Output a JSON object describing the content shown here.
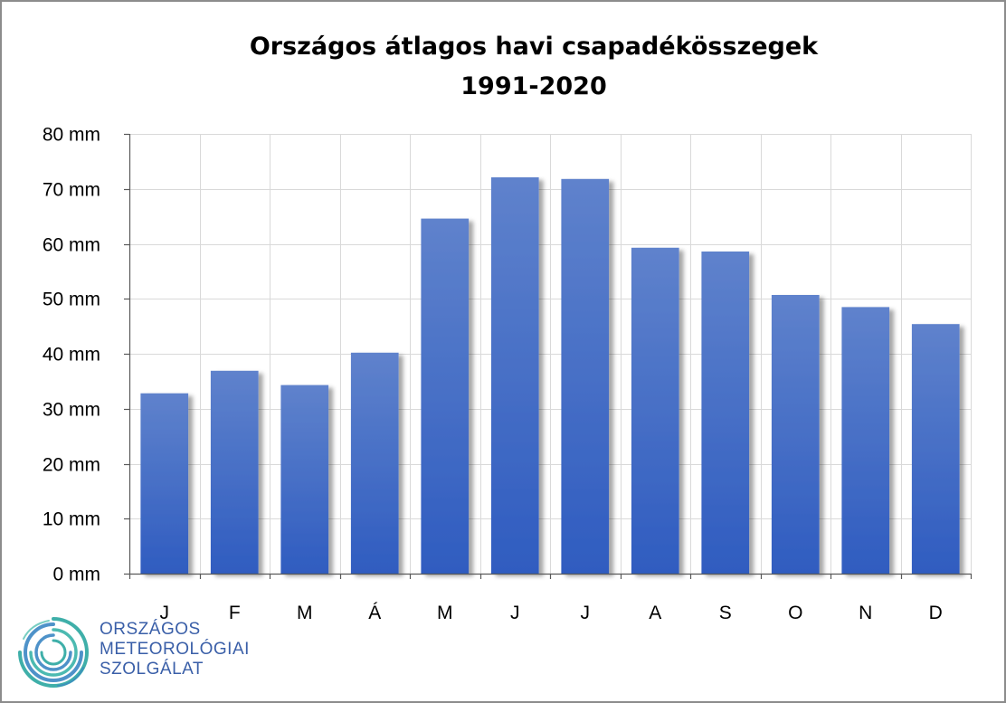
{
  "chart_data": {
    "type": "bar",
    "title": [
      "Országos átlagos havi csapadékösszegek",
      "1991-2020"
    ],
    "categories": [
      "J",
      "F",
      "M",
      "Á",
      "M",
      "J",
      "J",
      "A",
      "S",
      "O",
      "N",
      "D"
    ],
    "values": [
      32.8,
      36.9,
      34.3,
      40.2,
      64.6,
      72.1,
      71.8,
      59.3,
      58.6,
      50.7,
      48.5,
      45.4
    ],
    "ylim": [
      0,
      80
    ],
    "yticks": [
      0,
      10,
      20,
      30,
      40,
      50,
      60,
      70,
      80
    ],
    "ytick_labels": [
      "0 mm",
      "10 mm",
      "20 mm",
      "30 mm",
      "40 mm",
      "50 mm",
      "60 mm",
      "70 mm",
      "80 mm"
    ],
    "xlabel": "",
    "ylabel": "",
    "grid": true,
    "bar_color_top": "#5f82cc",
    "bar_color_bottom": "#2f5cc0"
  },
  "logo": {
    "lines": [
      "ORSZÁGOS",
      "METEOROLÓGIAI",
      "SZOLGÁLAT"
    ],
    "text_color": "#3a5fa8",
    "mark_color_teal": "#2aa6a0",
    "mark_color_blue": "#2f7fbf"
  }
}
